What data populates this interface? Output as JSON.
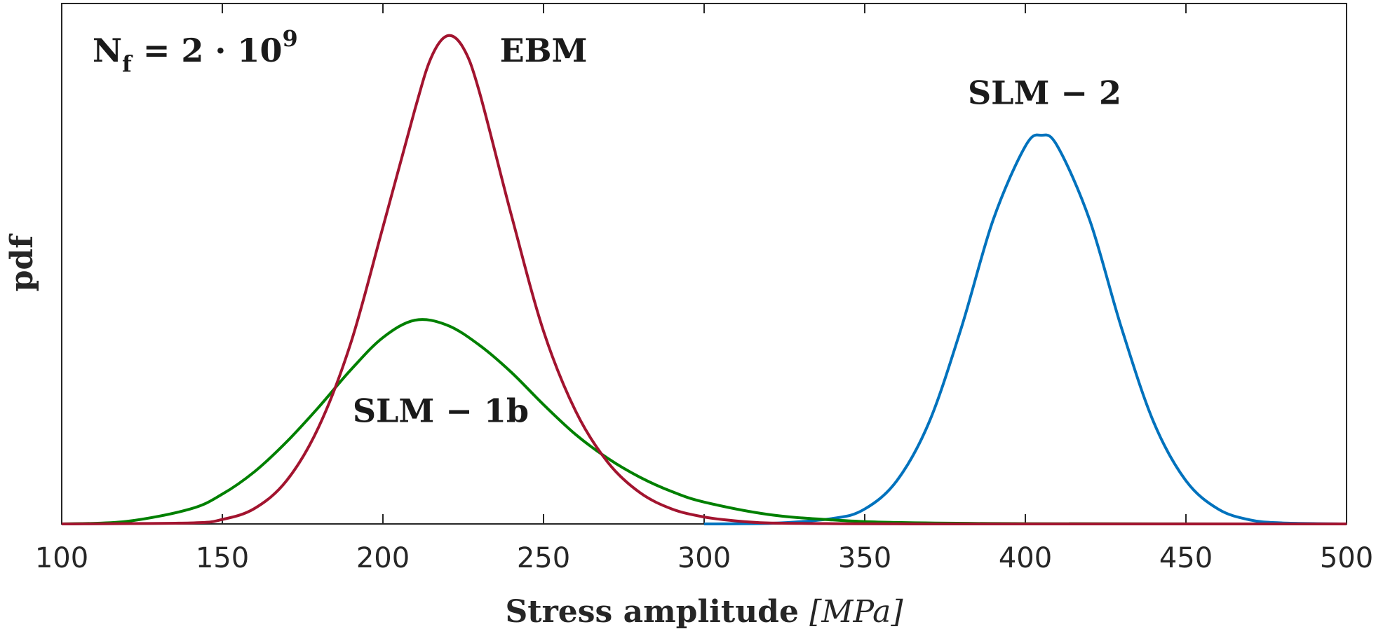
{
  "chart_data": {
    "type": "line",
    "title": "",
    "annotation": {
      "base": "N",
      "subscript": "f",
      "middle": " = 2 · 10",
      "superscript": "9"
    },
    "xlabel": {
      "text": "Stress amplitude ",
      "unit": "[MPa]"
    },
    "ylabel": "pdf",
    "xlim": [
      100,
      500
    ],
    "ylim": [
      0,
      1.0
    ],
    "xticks": [
      "100",
      "150",
      "200",
      "250",
      "300",
      "350",
      "400",
      "450",
      "500"
    ],
    "grid": false,
    "legend": "none",
    "series": [
      {
        "name": "EBM",
        "color": "#A2142F",
        "x": [
          100,
          140,
          150,
          160,
          170,
          180,
          190,
          200,
          210,
          215,
          220,
          225,
          230,
          240,
          250,
          260,
          270,
          280,
          290,
          300,
          310,
          320,
          340,
          360,
          400,
          500
        ],
        "y": [
          0.0,
          0.002,
          0.009,
          0.031,
          0.087,
          0.195,
          0.364,
          0.597,
          0.835,
          0.938,
          0.982,
          0.958,
          0.87,
          0.621,
          0.388,
          0.227,
          0.124,
          0.063,
          0.03,
          0.014,
          0.006,
          0.002,
          0.0005,
          0.0001,
          0.0,
          0.0
        ]
      },
      {
        "name": "SLM - 1b",
        "color": "#008000",
        "x": [
          100,
          120,
          140,
          150,
          160,
          170,
          180,
          190,
          200,
          210,
          220,
          230,
          240,
          250,
          260,
          270,
          280,
          290,
          300,
          320,
          340,
          360,
          400,
          500
        ],
        "y": [
          0.0,
          0.005,
          0.03,
          0.06,
          0.105,
          0.165,
          0.235,
          0.31,
          0.375,
          0.41,
          0.4,
          0.36,
          0.305,
          0.24,
          0.18,
          0.132,
          0.094,
          0.065,
          0.044,
          0.019,
          0.008,
          0.003,
          0.0005,
          0.0
        ]
      },
      {
        "name": "SLM - 2",
        "color": "#0072BD",
        "x": [
          300,
          320,
          340,
          350,
          360,
          370,
          380,
          390,
          400,
          405,
          410,
          420,
          430,
          440,
          450,
          460,
          470,
          480,
          500
        ],
        "y": [
          0.0,
          0.001,
          0.011,
          0.03,
          0.087,
          0.204,
          0.393,
          0.612,
          0.76,
          0.782,
          0.76,
          0.612,
          0.393,
          0.204,
          0.087,
          0.03,
          0.008,
          0.002,
          0.0
        ]
      }
    ],
    "labels": [
      {
        "series": "EBM",
        "text": "EBM",
        "x": 250,
        "y": 0.93
      },
      {
        "series": "SLM - 1b",
        "text": "SLM − 1b",
        "x": 218,
        "y": 0.205
      },
      {
        "series": "SLM - 2",
        "text": "SLM − 2",
        "x": 406,
        "y": 0.845
      }
    ]
  }
}
